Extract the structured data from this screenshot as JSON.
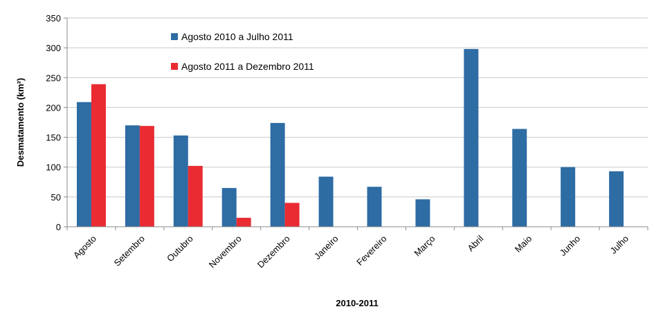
{
  "chart_data": {
    "type": "bar",
    "xlabel": "2010-2011",
    "ylabel": "Desmatamento (km²)",
    "ylim": [
      0,
      350
    ],
    "yticks": [
      0,
      50,
      100,
      150,
      200,
      250,
      300,
      350
    ],
    "grid": true,
    "legend_position": "top-center",
    "categories": [
      "Agosto",
      "Setembro",
      "Outubro",
      "Novembro",
      "Dezembro",
      "Janeiro",
      "Fevereiro",
      "Março",
      "Abril",
      "Maio",
      "Junho",
      "Julho"
    ],
    "series": [
      {
        "name": "Agosto 2010 a Julho 2011",
        "color": "#2e6ca4",
        "values": [
          209,
          170,
          153,
          65,
          174,
          84,
          67,
          46,
          298,
          164,
          100,
          93
        ]
      },
      {
        "name": "Agosto 2011 a Dezembro 2011",
        "color": "#ea2b32",
        "values": [
          239,
          169,
          102,
          15,
          40,
          null,
          null,
          null,
          null,
          null,
          null,
          null
        ]
      }
    ]
  }
}
